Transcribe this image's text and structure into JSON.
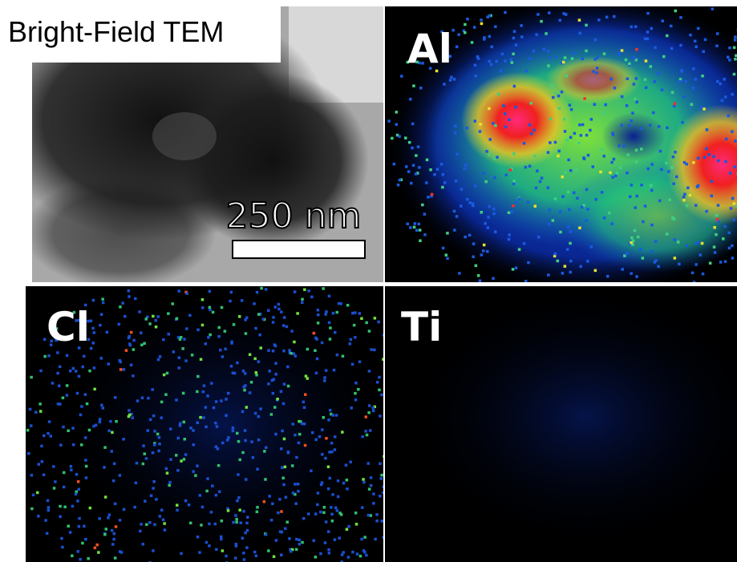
{
  "panels": [
    {
      "label": "Bright-Field TEM",
      "scale_bar": "250 nm"
    },
    {
      "label": "Al"
    },
    {
      "label": "Cl"
    },
    {
      "label": "Ti"
    }
  ]
}
